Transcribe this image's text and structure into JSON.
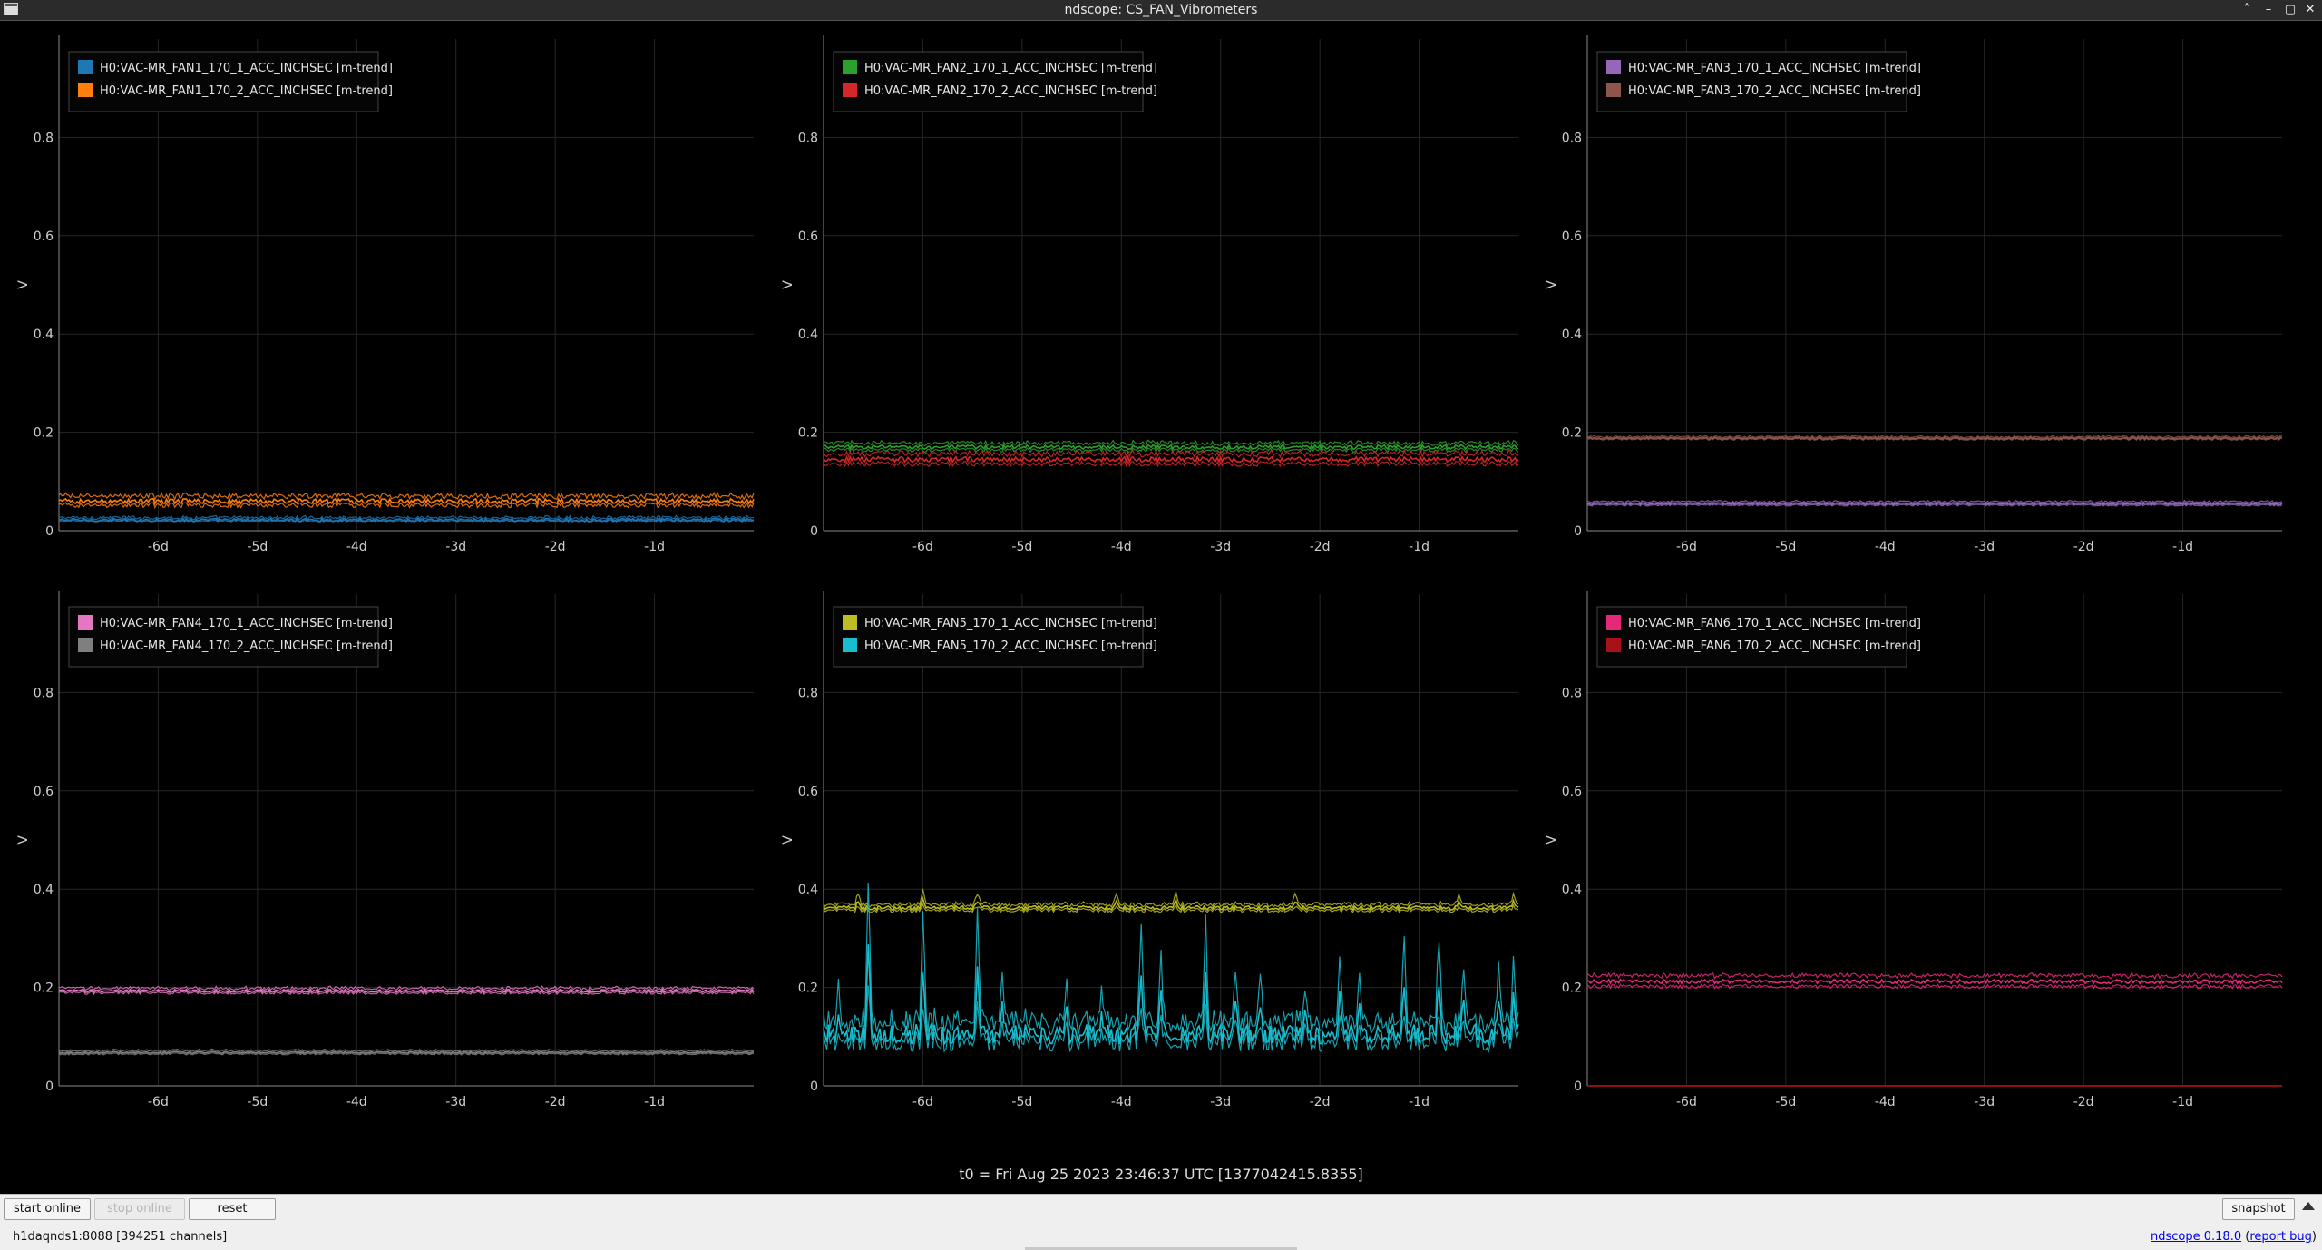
{
  "window": {
    "title": "ndscope: CS_FAN_Vibrometers",
    "controls": [
      "˄",
      "–",
      "▢",
      "✕"
    ]
  },
  "axes": {
    "ylabel": "V",
    "yticks": [
      "0",
      "0.2",
      "0.4",
      "0.6",
      "0.8"
    ],
    "xticks": [
      "-6d",
      "-5d",
      "-4d",
      "-3d",
      "-2d",
      "-1d"
    ]
  },
  "t0_label": "t0 = Fri Aug 25 2023 23:46:37 UTC [1377042415.8355]",
  "toolbar": {
    "start_online": "start online",
    "stop_online": "stop online",
    "reset": "reset",
    "snapshot": "snapshot"
  },
  "status": {
    "server": "h1daqnds1:8088  [394251 channels]",
    "version": "ndscope 0.18.0",
    "report_bug": "report bug"
  },
  "chart_data": [
    {
      "type": "line",
      "xlim": [
        -7,
        0
      ],
      "ylim": [
        0,
        1
      ],
      "x_unit": "days",
      "grid": true,
      "legend_position": "top-left",
      "series": [
        {
          "name": "H0:VAC-MR_FAN1_170_1_ACC_INCHSEC [m-trend]",
          "color": "#1f77b4",
          "level": 0.022,
          "band": 0.006,
          "noise": 0.003,
          "spikes": []
        },
        {
          "name": "H0:VAC-MR_FAN1_170_2_ACC_INCHSEC [m-trend]",
          "color": "#ff7f0e",
          "level": 0.06,
          "band": 0.016,
          "noise": 0.005,
          "spikes": []
        }
      ]
    },
    {
      "type": "line",
      "xlim": [
        -7,
        0
      ],
      "ylim": [
        0,
        1
      ],
      "x_unit": "days",
      "grid": true,
      "legend_position": "top-left",
      "series": [
        {
          "name": "H0:VAC-MR_FAN2_170_1_ACC_INCHSEC [m-trend]",
          "color": "#2ca02c",
          "level": 0.17,
          "band": 0.012,
          "noise": 0.004,
          "spikes": []
        },
        {
          "name": "H0:VAC-MR_FAN2_170_2_ACC_INCHSEC [m-trend]",
          "color": "#d62728",
          "level": 0.145,
          "band": 0.018,
          "noise": 0.005,
          "spikes": []
        }
      ]
    },
    {
      "type": "line",
      "xlim": [
        -7,
        0
      ],
      "ylim": [
        0,
        1
      ],
      "x_unit": "days",
      "grid": true,
      "legend_position": "top-left",
      "series": [
        {
          "name": "H0:VAC-MR_FAN3_170_1_ACC_INCHSEC [m-trend]",
          "color": "#9467bd",
          "level": 0.055,
          "band": 0.006,
          "noise": 0.002,
          "spikes": []
        },
        {
          "name": "H0:VAC-MR_FAN3_170_2_ACC_INCHSEC [m-trend]",
          "color": "#8c564b",
          "level": 0.188,
          "band": 0.004,
          "noise": 0.002,
          "spikes": []
        }
      ]
    },
    {
      "type": "line",
      "xlim": [
        -7,
        0
      ],
      "ylim": [
        0,
        1
      ],
      "x_unit": "days",
      "grid": true,
      "legend_position": "top-left",
      "series": [
        {
          "name": "H0:VAC-MR_FAN4_170_1_ACC_INCHSEC [m-trend]",
          "color": "#e377c2",
          "level": 0.193,
          "band": 0.008,
          "noise": 0.003,
          "spikes": []
        },
        {
          "name": "H0:VAC-MR_FAN4_170_2_ACC_INCHSEC [m-trend]",
          "color": "#7f7f7f",
          "level": 0.068,
          "band": 0.006,
          "noise": 0.002,
          "spikes": []
        }
      ]
    },
    {
      "type": "line",
      "xlim": [
        -7,
        0
      ],
      "ylim": [
        0,
        1
      ],
      "x_unit": "days",
      "grid": true,
      "legend_position": "top-left",
      "series": [
        {
          "name": "H0:VAC-MR_FAN5_170_1_ACC_INCHSEC [m-trend]",
          "color": "#bcbd22",
          "level": 0.362,
          "band": 0.01,
          "noise": 0.004,
          "spikes": [
            [
              -6.65,
              0.385
            ],
            [
              -6.0,
              0.39
            ],
            [
              -5.45,
              0.385
            ],
            [
              -4.05,
              0.385
            ],
            [
              -3.45,
              0.385
            ],
            [
              -2.25,
              0.385
            ],
            [
              -0.6,
              0.385
            ],
            [
              -0.05,
              0.38
            ]
          ]
        },
        {
          "name": "H0:VAC-MR_FAN5_170_2_ACC_INCHSEC [m-trend]",
          "color": "#17becf",
          "level": 0.105,
          "band": 0.03,
          "noise": 0.02,
          "spikes": [
            [
              -6.85,
              0.2
            ],
            [
              -6.55,
              0.38
            ],
            [
              -6.0,
              0.34
            ],
            [
              -5.45,
              0.33
            ],
            [
              -5.2,
              0.2
            ],
            [
              -4.55,
              0.17
            ],
            [
              -4.2,
              0.18
            ],
            [
              -3.8,
              0.31
            ],
            [
              -3.6,
              0.25
            ],
            [
              -3.15,
              0.31
            ],
            [
              -2.85,
              0.2
            ],
            [
              -2.6,
              0.21
            ],
            [
              -2.15,
              0.16
            ],
            [
              -1.8,
              0.24
            ],
            [
              -1.6,
              0.22
            ],
            [
              -1.15,
              0.28
            ],
            [
              -0.8,
              0.29
            ],
            [
              -0.55,
              0.22
            ],
            [
              -0.2,
              0.23
            ],
            [
              -0.05,
              0.25
            ]
          ]
        }
      ]
    },
    {
      "type": "line",
      "xlim": [
        -7,
        0
      ],
      "ylim": [
        0,
        1
      ],
      "x_unit": "days",
      "grid": true,
      "legend_position": "top-left",
      "series": [
        {
          "name": "H0:VAC-MR_FAN6_170_1_ACC_INCHSEC [m-trend]",
          "color": "#e7277a",
          "level": 0.212,
          "band": 0.02,
          "noise": 0.004,
          "spikes": []
        },
        {
          "name": "H0:VAC-MR_FAN6_170_2_ACC_INCHSEC [m-trend]",
          "color": "#a8101a",
          "level": 0.0,
          "band": 0.0,
          "noise": 0.0,
          "spikes": []
        }
      ]
    }
  ]
}
